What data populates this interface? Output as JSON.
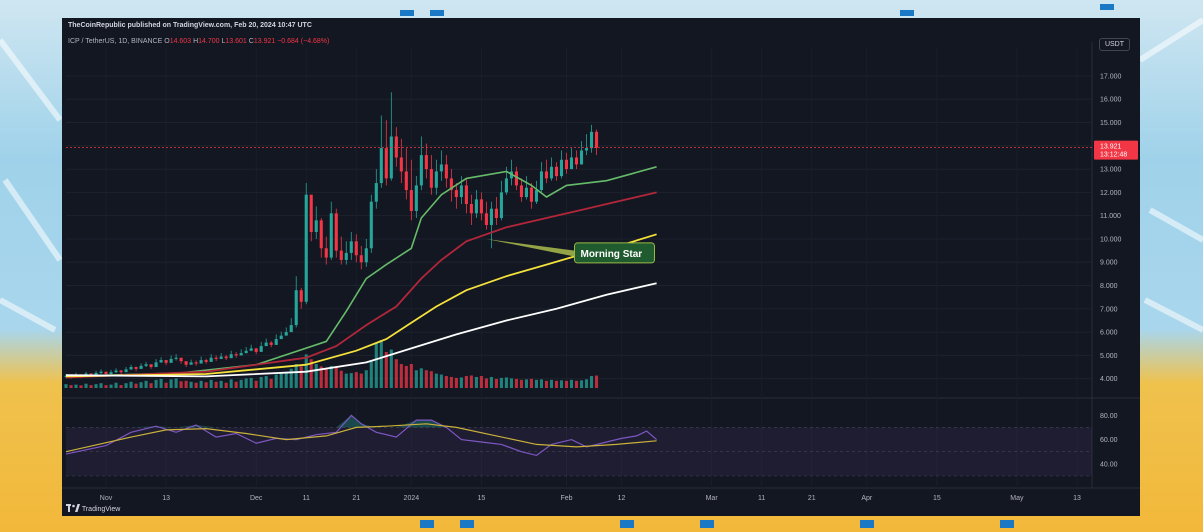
{
  "header": {
    "publisher": "TheCoinRepublic published on TradingView.com, Feb 20, 2024 10:47 UTC",
    "symbol_line": "ICP / TetherUS, 1D, BINANCE",
    "ohlc": {
      "o_label": "O",
      "o": "14.603",
      "h_label": "H",
      "h": "14.700",
      "l_label": "L",
      "l": "13.601",
      "c_label": "C",
      "c": "13.921",
      "change": "−0.684 (−4.68%)"
    },
    "currency_button": "USDT"
  },
  "price_tag": {
    "price": "13.921",
    "countdown": "13:12:48"
  },
  "footer": {
    "brand": "TradingView"
  },
  "annotation": {
    "text": "Morning Star"
  },
  "colors": {
    "up": "#26a69a",
    "down": "#f23645",
    "ema20": "#66bb6a",
    "ema50": "#b2263a",
    "ema100": "#f5e13b",
    "ema200": "#ffffff",
    "rsi": "#7e57c2",
    "rsi_ma": "#c9b13a",
    "background": "#131722"
  },
  "chart_data": [
    {
      "type": "candlestick",
      "title": "ICP / TetherUS, 1D, BINANCE",
      "y_axis": {
        "ticks": [
          4.0,
          5.0,
          6.0,
          7.0,
          8.0,
          9.0,
          10.0,
          11.0,
          12.0,
          13.0,
          14.0,
          15.0,
          16.0,
          17.0
        ],
        "tick_labels": [
          "4.000",
          "5.000",
          "6.000",
          "7.000",
          "8.000",
          "9.000",
          "10.000",
          "11.000",
          "12.000",
          "13.000",
          "14.000",
          "15.000",
          "16.000",
          "17.000"
        ],
        "range": [
          3.6,
          18.2
        ]
      },
      "x_axis": {
        "tick_labels": [
          "Nov",
          "13",
          "Dec",
          "11",
          "21",
          "2024",
          "15",
          "Feb",
          "12",
          "Mar",
          "11",
          "21",
          "Apr",
          "15",
          "May",
          "13"
        ],
        "tick_days": [
          0,
          12,
          30,
          40,
          50,
          61,
          75,
          92,
          103,
          121,
          131,
          141,
          152,
          166,
          182,
          194
        ],
        "range_days": [
          -8,
          197
        ]
      },
      "series": [
        {
          "name": "",
          "kind": "ohlc",
          "x_start_day": -8,
          "closes": [
            4.12,
            4.08,
            4.18,
            4.1,
            4.22,
            4.15,
            4.25,
            4.3,
            4.2,
            4.28,
            4.35,
            4.28,
            4.4,
            4.5,
            4.42,
            4.55,
            4.62,
            4.5,
            4.7,
            4.8,
            4.68,
            4.85,
            4.9,
            4.75,
            4.6,
            4.7,
            4.65,
            4.8,
            4.72,
            4.9,
            4.85,
            4.95,
            4.88,
            5.05,
            5.0,
            5.1,
            5.2,
            5.3,
            5.15,
            5.4,
            5.55,
            5.45,
            5.7,
            5.85,
            6.0,
            6.3,
            7.8,
            7.3,
            11.9,
            10.3,
            10.8,
            9.6,
            9.2,
            11.1,
            9.5,
            9.1,
            9.4,
            9.9,
            9.3,
            9.0,
            9.6,
            11.6,
            12.4,
            13.9,
            12.6,
            14.4,
            13.5,
            12.9,
            12.1,
            11.2,
            12.3,
            13.6,
            13.0,
            12.2,
            12.9,
            13.2,
            12.6,
            12.1,
            11.8,
            12.3,
            11.5,
            11.1,
            11.7,
            11.1,
            10.6,
            11.3,
            10.9,
            12.0,
            12.6,
            12.9,
            12.3,
            11.8,
            12.2,
            11.6,
            12.1,
            12.9,
            12.6,
            13.1,
            12.7,
            13.4,
            13.0,
            13.5,
            13.2,
            13.8,
            13.9,
            14.6,
            13.921
          ],
          "highs": [
            4.2,
            4.18,
            4.26,
            4.2,
            4.3,
            4.24,
            4.34,
            4.4,
            4.3,
            4.38,
            4.45,
            4.38,
            4.5,
            4.6,
            4.52,
            4.66,
            4.72,
            4.6,
            4.84,
            4.92,
            4.8,
            5.0,
            5.05,
            4.88,
            4.72,
            4.82,
            4.78,
            4.95,
            4.86,
            5.05,
            5.0,
            5.1,
            5.02,
            5.2,
            5.14,
            5.26,
            5.36,
            5.46,
            5.32,
            5.58,
            5.72,
            5.62,
            5.9,
            6.02,
            6.2,
            6.6,
            8.4,
            7.9,
            12.4,
            11.7,
            11.4,
            10.9,
            10.1,
            11.6,
            11.3,
            10.1,
            9.9,
            10.3,
            10.2,
            9.7,
            10.0,
            11.9,
            13.0,
            15.3,
            15.1,
            16.3,
            14.8,
            14.3,
            13.9,
            13.4,
            12.7,
            14.4,
            14.1,
            13.6,
            13.4,
            13.8,
            13.6,
            13.0,
            12.4,
            12.7,
            12.6,
            11.9,
            12.1,
            12.0,
            11.6,
            11.6,
            11.8,
            12.5,
            13.1,
            13.4,
            13.1,
            12.6,
            12.7,
            12.4,
            12.5,
            13.3,
            13.4,
            13.5,
            13.3,
            13.8,
            13.7,
            13.9,
            13.8,
            14.2,
            14.5,
            14.9,
            14.7
          ],
          "lows": [
            4.02,
            4.0,
            4.06,
            4.02,
            4.1,
            4.06,
            4.14,
            4.2,
            4.12,
            4.18,
            4.24,
            4.2,
            4.3,
            4.38,
            4.32,
            4.44,
            4.5,
            4.42,
            4.58,
            4.68,
            4.58,
            4.72,
            4.78,
            4.64,
            4.5,
            4.6,
            4.56,
            4.7,
            4.64,
            4.78,
            4.76,
            4.84,
            4.8,
            4.92,
            4.9,
            5.0,
            5.08,
            5.18,
            5.05,
            5.28,
            5.42,
            5.35,
            5.56,
            5.72,
            5.85,
            6.05,
            6.2,
            7.0,
            7.2,
            9.9,
            10.0,
            9.2,
            8.9,
            9.1,
            9.2,
            8.9,
            8.9,
            9.1,
            9.0,
            8.7,
            8.8,
            9.4,
            11.3,
            12.2,
            12.3,
            12.5,
            13.1,
            12.4,
            11.7,
            10.8,
            10.9,
            12.1,
            12.6,
            11.9,
            11.9,
            12.5,
            12.2,
            11.6,
            11.3,
            11.5,
            11.1,
            10.6,
            10.9,
            10.8,
            10.4,
            9.6,
            10.6,
            10.8,
            11.9,
            12.3,
            12.1,
            11.6,
            11.7,
            11.3,
            11.5,
            12.0,
            12.4,
            12.5,
            12.5,
            12.6,
            12.8,
            13.0,
            13.0,
            13.2,
            13.6,
            13.7,
            13.601
          ],
          "volumes": [
            0.16,
            0.12,
            0.14,
            0.11,
            0.18,
            0.12,
            0.16,
            0.2,
            0.12,
            0.14,
            0.22,
            0.12,
            0.2,
            0.26,
            0.18,
            0.24,
            0.3,
            0.2,
            0.34,
            0.38,
            0.22,
            0.36,
            0.4,
            0.28,
            0.3,
            0.26,
            0.22,
            0.3,
            0.24,
            0.34,
            0.26,
            0.3,
            0.22,
            0.36,
            0.26,
            0.34,
            0.4,
            0.42,
            0.3,
            0.46,
            0.5,
            0.38,
            0.56,
            0.6,
            0.64,
            0.8,
            1.0,
            0.9,
            1.4,
            1.2,
            1.0,
            0.9,
            0.8,
            0.92,
            0.9,
            0.72,
            0.6,
            0.62,
            0.66,
            0.6,
            0.74,
            1.1,
            1.9,
            2.0,
            1.5,
            1.6,
            1.2,
            1.0,
            0.92,
            1.0,
            0.74,
            0.82,
            0.74,
            0.7,
            0.6,
            0.56,
            0.5,
            0.46,
            0.42,
            0.44,
            0.5,
            0.52,
            0.46,
            0.5,
            0.4,
            0.46,
            0.38,
            0.42,
            0.44,
            0.4,
            0.38,
            0.34,
            0.36,
            0.38,
            0.34,
            0.36,
            0.3,
            0.34,
            0.3,
            0.32,
            0.3,
            0.34,
            0.3,
            0.32,
            0.36,
            0.5,
            0.52
          ]
        },
        {
          "name": "",
          "kind": "line",
          "color": "#66bb6a",
          "points": [
            [
              -8,
              4.1
            ],
            [
              15,
              4.25
            ],
            [
              30,
              4.6
            ],
            [
              44,
              5.6
            ],
            [
              48,
              6.9
            ],
            [
              52,
              8.3
            ],
            [
              56,
              8.9
            ],
            [
              61,
              9.6
            ],
            [
              63,
              10.9
            ],
            [
              67,
              11.9
            ],
            [
              72,
              12.6
            ],
            [
              80,
              12.9
            ],
            [
              85,
              12.3
            ],
            [
              88,
              11.8
            ],
            [
              92,
              12.3
            ],
            [
              100,
              12.5
            ],
            [
              105,
              12.8
            ],
            [
              110,
              13.1
            ]
          ]
        },
        {
          "name": "",
          "kind": "line",
          "color": "#b2263a",
          "points": [
            [
              -8,
              4.05
            ],
            [
              20,
              4.3
            ],
            [
              40,
              4.9
            ],
            [
              46,
              5.4
            ],
            [
              52,
              6.3
            ],
            [
              58,
              7.1
            ],
            [
              63,
              8.3
            ],
            [
              67,
              9.1
            ],
            [
              72,
              9.9
            ],
            [
              80,
              10.5
            ],
            [
              88,
              10.9
            ],
            [
              96,
              11.3
            ],
            [
              104,
              11.7
            ],
            [
              110,
              12.0
            ]
          ]
        },
        {
          "name": "",
          "kind": "line",
          "color": "#f5e13b",
          "points": [
            [
              -8,
              4.1
            ],
            [
              20,
              4.2
            ],
            [
              40,
              4.6
            ],
            [
              50,
              5.2
            ],
            [
              56,
              5.7
            ],
            [
              61,
              6.4
            ],
            [
              66,
              7.1
            ],
            [
              72,
              7.8
            ],
            [
              80,
              8.4
            ],
            [
              88,
              8.9
            ],
            [
              96,
              9.4
            ],
            [
              104,
              9.8
            ],
            [
              110,
              10.2
            ]
          ]
        },
        {
          "name": "",
          "kind": "line",
          "color": "#ffffff",
          "points": [
            [
              -8,
              4.15
            ],
            [
              20,
              4.1
            ],
            [
              40,
              4.3
            ],
            [
              52,
              4.7
            ],
            [
              61,
              5.3
            ],
            [
              70,
              5.9
            ],
            [
              80,
              6.5
            ],
            [
              90,
              7.0
            ],
            [
              100,
              7.6
            ],
            [
              110,
              8.1
            ]
          ]
        }
      ]
    },
    {
      "type": "line",
      "title": "",
      "y_axis": {
        "ticks": [
          40,
          60,
          80
        ],
        "tick_labels": [
          "40.00",
          "60.00",
          "80.00"
        ],
        "range": [
          30,
          86
        ],
        "band": [
          30,
          70
        ]
      },
      "series": [
        {
          "name": "",
          "kind": "rsi",
          "points": [
            [
              -8,
              48
            ],
            [
              0,
              55
            ],
            [
              5,
              66
            ],
            [
              10,
              71
            ],
            [
              14,
              66
            ],
            [
              18,
              72
            ],
            [
              22,
              62
            ],
            [
              26,
              65
            ],
            [
              30,
              57
            ],
            [
              34,
              61
            ],
            [
              38,
              60
            ],
            [
              42,
              64
            ],
            [
              46,
              66
            ],
            [
              49,
              80
            ],
            [
              51,
              73
            ],
            [
              54,
              66
            ],
            [
              58,
              62
            ],
            [
              62,
              76
            ],
            [
              65,
              76
            ],
            [
              68,
              70
            ],
            [
              71,
              60
            ],
            [
              75,
              58
            ],
            [
              79,
              56
            ],
            [
              83,
              50
            ],
            [
              86,
              47
            ],
            [
              89,
              56
            ],
            [
              93,
              60
            ],
            [
              96,
              54
            ],
            [
              100,
              58
            ],
            [
              103,
              61
            ],
            [
              106,
              63
            ],
            [
              108,
              67
            ],
            [
              110,
              60
            ]
          ]
        },
        {
          "name": "",
          "kind": "rsi_ma",
          "points": [
            [
              -8,
              50
            ],
            [
              5,
              62
            ],
            [
              12,
              68
            ],
            [
              20,
              69
            ],
            [
              28,
              65
            ],
            [
              36,
              60
            ],
            [
              44,
              63
            ],
            [
              50,
              70
            ],
            [
              56,
              71
            ],
            [
              64,
              73
            ],
            [
              70,
              70
            ],
            [
              78,
              63
            ],
            [
              86,
              56
            ],
            [
              94,
              54
            ],
            [
              102,
              56
            ],
            [
              110,
              59
            ]
          ]
        }
      ]
    }
  ]
}
